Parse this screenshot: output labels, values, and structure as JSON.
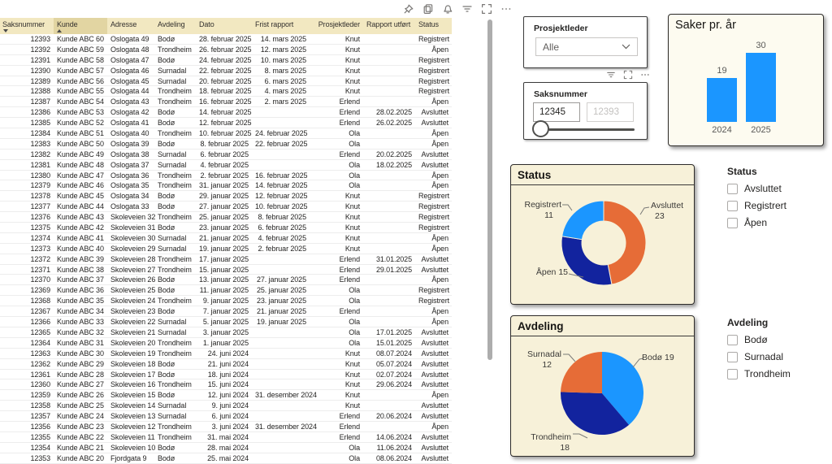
{
  "toolbar": {
    "icons": [
      "pin",
      "copy",
      "alerts-bell",
      "filters",
      "focus-mode",
      "more-options"
    ]
  },
  "table": {
    "columns": [
      {
        "label": "Saksnummer",
        "sort": "desc"
      },
      {
        "label": "Kunde",
        "sort": "asc",
        "highlight": true
      },
      {
        "label": "Adresse"
      },
      {
        "label": "Avdeling"
      },
      {
        "label": "Dato"
      },
      {
        "label": "Frist rapport"
      },
      {
        "label": "Prosjektleder"
      },
      {
        "label": "Rapport utført"
      },
      {
        "label": "Status"
      }
    ],
    "rows": [
      [
        "12393",
        "Kunde ABC 60",
        "Oslogata 49",
        "Bodø",
        "28. februar 2025",
        "14. mars 2025",
        "Knut",
        "",
        "Registrert"
      ],
      [
        "12392",
        "Kunde ABC 59",
        "Oslogata 48",
        "Trondheim",
        "26. februar 2025",
        "12. mars 2025",
        "Knut",
        "",
        "Åpen"
      ],
      [
        "12391",
        "Kunde ABC 58",
        "Oslogata 47",
        "Bodø",
        "24. februar 2025",
        "10. mars 2025",
        "Knut",
        "",
        "Registrert"
      ],
      [
        "12390",
        "Kunde ABC 57",
        "Oslogata 46",
        "Surnadal",
        "22. februar 2025",
        "8. mars 2025",
        "Knut",
        "",
        "Registrert"
      ],
      [
        "12389",
        "Kunde ABC 56",
        "Oslogata 45",
        "Surnadal",
        "20. februar 2025",
        "6. mars 2025",
        "Knut",
        "",
        "Registrert"
      ],
      [
        "12388",
        "Kunde ABC 55",
        "Oslogata 44",
        "Trondheim",
        "18. februar 2025",
        "4. mars 2025",
        "Knut",
        "",
        "Registrert"
      ],
      [
        "12387",
        "Kunde ABC 54",
        "Oslogata 43",
        "Trondheim",
        "16. februar 2025",
        "2. mars 2025",
        "Erlend",
        "",
        "Åpen"
      ],
      [
        "12386",
        "Kunde ABC 53",
        "Oslogata 42",
        "Bodø",
        "14. februar 2025",
        "",
        "Erlend",
        "28.02.2025",
        "Avsluttet"
      ],
      [
        "12385",
        "Kunde ABC 52",
        "Oslogata 41",
        "Bodø",
        "12. februar 2025",
        "",
        "Erlend",
        "26.02.2025",
        "Avsluttet"
      ],
      [
        "12384",
        "Kunde ABC 51",
        "Oslogata 40",
        "Trondheim",
        "10. februar 2025",
        "24. februar 2025",
        "Ola",
        "",
        "Åpen"
      ],
      [
        "12383",
        "Kunde ABC 50",
        "Oslogata 39",
        "Bodø",
        "8. februar 2025",
        "22. februar 2025",
        "Ola",
        "",
        "Åpen"
      ],
      [
        "12382",
        "Kunde ABC 49",
        "Oslogata 38",
        "Surnadal",
        "6. februar 2025",
        "",
        "Erlend",
        "20.02.2025",
        "Avsluttet"
      ],
      [
        "12381",
        "Kunde ABC 48",
        "Oslogata 37",
        "Surnadal",
        "4. februar 2025",
        "",
        "Ola",
        "18.02.2025",
        "Avsluttet"
      ],
      [
        "12380",
        "Kunde ABC 47",
        "Oslogata 36",
        "Trondheim",
        "2. februar 2025",
        "16. februar 2025",
        "Ola",
        "",
        "Åpen"
      ],
      [
        "12379",
        "Kunde ABC 46",
        "Oslogata 35",
        "Trondheim",
        "31. januar 2025",
        "14. februar 2025",
        "Ola",
        "",
        "Åpen"
      ],
      [
        "12378",
        "Kunde ABC 45",
        "Oslogata 34",
        "Bodø",
        "29. januar 2025",
        "12. februar 2025",
        "Knut",
        "",
        "Registrert"
      ],
      [
        "12377",
        "Kunde ABC 44",
        "Oslogata 33",
        "Bodø",
        "27. januar 2025",
        "10. februar 2025",
        "Knut",
        "",
        "Registrert"
      ],
      [
        "12376",
        "Kunde ABC 43",
        "Skoleveien 32",
        "Trondheim",
        "25. januar 2025",
        "8. februar 2025",
        "Knut",
        "",
        "Registrert"
      ],
      [
        "12375",
        "Kunde ABC 42",
        "Skoleveien 31",
        "Bodø",
        "23. januar 2025",
        "6. februar 2025",
        "Knut",
        "",
        "Registrert"
      ],
      [
        "12374",
        "Kunde ABC 41",
        "Skoleveien 30",
        "Surnadal",
        "21. januar 2025",
        "4. februar 2025",
        "Knut",
        "",
        "Åpen"
      ],
      [
        "12373",
        "Kunde ABC 40",
        "Skoleveien 29",
        "Surnadal",
        "19. januar 2025",
        "2. februar 2025",
        "Knut",
        "",
        "Åpen"
      ],
      [
        "12372",
        "Kunde ABC 39",
        "Skoleveien 28",
        "Trondheim",
        "17. januar 2025",
        "",
        "Erlend",
        "31.01.2025",
        "Avsluttet"
      ],
      [
        "12371",
        "Kunde ABC 38",
        "Skoleveien 27",
        "Trondheim",
        "15. januar 2025",
        "",
        "Erlend",
        "29.01.2025",
        "Avsluttet"
      ],
      [
        "12370",
        "Kunde ABC 37",
        "Skoleveien 26",
        "Bodø",
        "13. januar 2025",
        "27. januar 2025",
        "Erlend",
        "",
        "Åpen"
      ],
      [
        "12369",
        "Kunde ABC 36",
        "Skoleveien 25",
        "Bodø",
        "11. januar 2025",
        "25. januar 2025",
        "Ola",
        "",
        "Registrert"
      ],
      [
        "12368",
        "Kunde ABC 35",
        "Skoleveien 24",
        "Trondheim",
        "9. januar 2025",
        "23. januar 2025",
        "Ola",
        "",
        "Registrert"
      ],
      [
        "12367",
        "Kunde ABC 34",
        "Skoleveien 23",
        "Bodø",
        "7. januar 2025",
        "21. januar 2025",
        "Erlend",
        "",
        "Åpen"
      ],
      [
        "12366",
        "Kunde ABC 33",
        "Skoleveien 22",
        "Surnadal",
        "5. januar 2025",
        "19. januar 2025",
        "Ola",
        "",
        "Åpen"
      ],
      [
        "12365",
        "Kunde ABC 32",
        "Skoleveien 21",
        "Surnadal",
        "3. januar 2025",
        "",
        "Ola",
        "17.01.2025",
        "Avsluttet"
      ],
      [
        "12364",
        "Kunde ABC 31",
        "Skoleveien 20",
        "Trondheim",
        "1. januar 2025",
        "",
        "Ola",
        "15.01.2025",
        "Avsluttet"
      ],
      [
        "12363",
        "Kunde ABC 30",
        "Skoleveien 19",
        "Trondheim",
        "24. juni 2024",
        "",
        "Knut",
        "08.07.2024",
        "Avsluttet"
      ],
      [
        "12362",
        "Kunde ABC 29",
        "Skoleveien 18",
        "Bodø",
        "21. juni 2024",
        "",
        "Knut",
        "05.07.2024",
        "Avsluttet"
      ],
      [
        "12361",
        "Kunde ABC 28",
        "Skoleveien 17",
        "Bodø",
        "18. juni 2024",
        "",
        "Knut",
        "02.07.2024",
        "Avsluttet"
      ],
      [
        "12360",
        "Kunde ABC 27",
        "Skoleveien 16",
        "Trondheim",
        "15. juni 2024",
        "",
        "Knut",
        "29.06.2024",
        "Avsluttet"
      ],
      [
        "12359",
        "Kunde ABC 26",
        "Skoleveien 15",
        "Bodø",
        "12. juni 2024",
        "31. desember 2024",
        "Knut",
        "",
        "Åpen"
      ],
      [
        "12358",
        "Kunde ABC 25",
        "Skoleveien 14",
        "Surnadal",
        "9. juni 2024",
        "",
        "Knut",
        "",
        "Avsluttet"
      ],
      [
        "12357",
        "Kunde ABC 24",
        "Skoleveien 13",
        "Surnadal",
        "6. juni 2024",
        "",
        "Erlend",
        "20.06.2024",
        "Avsluttet"
      ],
      [
        "12356",
        "Kunde ABC 23",
        "Skoleveien 12",
        "Trondheim",
        "3. juni 2024",
        "31. desember 2024",
        "Erlend",
        "",
        "Åpen"
      ],
      [
        "12355",
        "Kunde ABC 22",
        "Skoleveien 11",
        "Trondheim",
        "31. mai 2024",
        "",
        "Erlend",
        "14.06.2024",
        "Avsluttet"
      ],
      [
        "12354",
        "Kunde ABC 21",
        "Skoleveien 10",
        "Bodø",
        "28. mai 2024",
        "",
        "Ola",
        "11.06.2024",
        "Avsluttet"
      ],
      [
        "12353",
        "Kunde ABC 20",
        "Fjordgata 9",
        "Bodø",
        "25. mai 2024",
        "",
        "Ola",
        "08.06.2024",
        "Avsluttet"
      ]
    ]
  },
  "slicer_prosjektleder": {
    "title": "Prosjektleder",
    "value": "Alle"
  },
  "slicer_saksnummer": {
    "title": "Saksnummer",
    "from": "12345",
    "to": "12393"
  },
  "slicer_toolbar": {
    "icons": [
      "filters",
      "focus-mode",
      "more-options"
    ]
  },
  "chart_data": [
    {
      "type": "bar",
      "title": "Saker pr. år",
      "categories": [
        "2024",
        "2025"
      ],
      "values": [
        19,
        30
      ],
      "color": "#1B96FF",
      "data_labels": true,
      "ylim": [
        0,
        30
      ]
    },
    {
      "type": "donut",
      "title": "Status",
      "slices": [
        {
          "label": "Avsluttet",
          "value": 23,
          "color": "#E66C37"
        },
        {
          "label": "Åpen",
          "value": 15,
          "color": "#12239E"
        },
        {
          "label": "Registrert",
          "value": 11,
          "color": "#1B96FF"
        }
      ]
    },
    {
      "type": "pie",
      "title": "Avdeling",
      "slices": [
        {
          "label": "Bodø",
          "value": 19,
          "color": "#1B96FF"
        },
        {
          "label": "Trondheim",
          "value": 18,
          "color": "#12239E"
        },
        {
          "label": "Surnadal",
          "value": 12,
          "color": "#E66C37"
        }
      ]
    }
  ],
  "filter_status": {
    "title": "Status",
    "options": [
      "Avsluttet",
      "Registrert",
      "Åpen"
    ]
  },
  "filter_avdeling": {
    "title": "Avdeling",
    "options": [
      "Bodø",
      "Surnadal",
      "Trondheim"
    ]
  },
  "colors": {
    "blue": "#1B96FF",
    "dark_blue": "#12239E",
    "orange": "#E66C37",
    "panel_cream": "#F7F1D9",
    "panel_light": "#FDFBF0",
    "header_yellow": "#F2E8C1",
    "header_sorted": "#E2D5A2"
  }
}
